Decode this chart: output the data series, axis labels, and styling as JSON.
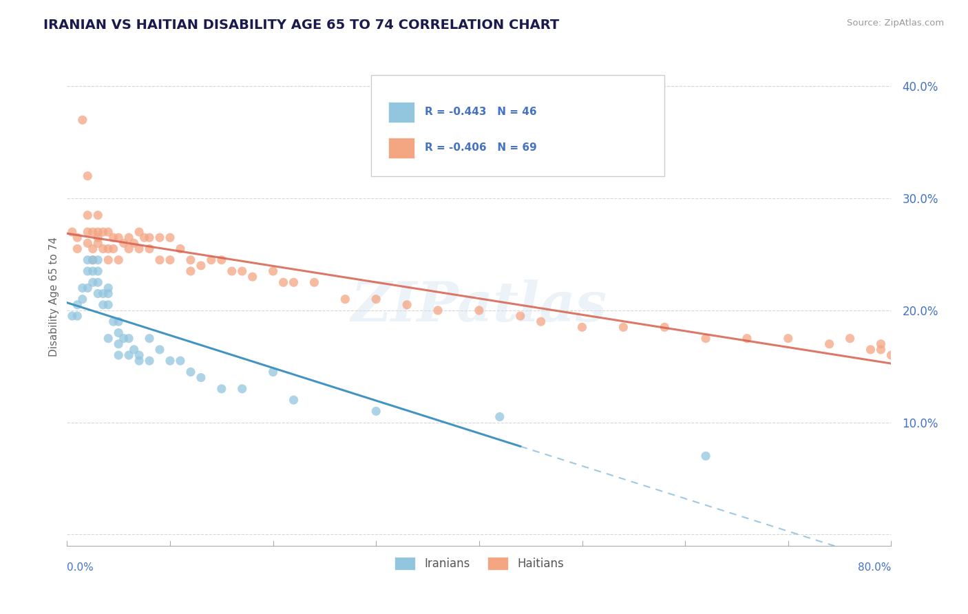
{
  "title": "IRANIAN VS HAITIAN DISABILITY AGE 65 TO 74 CORRELATION CHART",
  "source": "Source: ZipAtlas.com",
  "ylabel": "Disability Age 65 to 74",
  "xlim": [
    0.0,
    0.8
  ],
  "ylim": [
    -0.01,
    0.435
  ],
  "yticks": [
    0.0,
    0.1,
    0.2,
    0.3,
    0.4
  ],
  "ytick_labels": [
    "",
    "10.0%",
    "20.0%",
    "30.0%",
    "40.0%"
  ],
  "legend_line1": "R = -0.443   N = 46",
  "legend_line2": "R = -0.406   N = 69",
  "iranian_color": "#92c5de",
  "haitian_color": "#f4a582",
  "iranian_line_color": "#4393c3",
  "haitian_line_color": "#d6604d",
  "watermark": "ZIPAtlas",
  "background_color": "#ffffff",
  "grid_color": "#cccccc",
  "iranian_scatter_x": [
    0.005,
    0.01,
    0.01,
    0.015,
    0.015,
    0.02,
    0.02,
    0.02,
    0.025,
    0.025,
    0.025,
    0.03,
    0.03,
    0.03,
    0.03,
    0.035,
    0.035,
    0.04,
    0.04,
    0.04,
    0.04,
    0.045,
    0.05,
    0.05,
    0.05,
    0.05,
    0.055,
    0.06,
    0.06,
    0.065,
    0.07,
    0.07,
    0.08,
    0.08,
    0.09,
    0.1,
    0.11,
    0.12,
    0.13,
    0.15,
    0.17,
    0.2,
    0.22,
    0.3,
    0.42,
    0.62
  ],
  "iranian_scatter_y": [
    0.195,
    0.205,
    0.195,
    0.22,
    0.21,
    0.245,
    0.235,
    0.22,
    0.245,
    0.235,
    0.225,
    0.245,
    0.235,
    0.225,
    0.215,
    0.215,
    0.205,
    0.22,
    0.215,
    0.205,
    0.175,
    0.19,
    0.19,
    0.18,
    0.17,
    0.16,
    0.175,
    0.175,
    0.16,
    0.165,
    0.16,
    0.155,
    0.175,
    0.155,
    0.165,
    0.155,
    0.155,
    0.145,
    0.14,
    0.13,
    0.13,
    0.145,
    0.12,
    0.11,
    0.105,
    0.07
  ],
  "haitian_scatter_x": [
    0.005,
    0.01,
    0.01,
    0.015,
    0.02,
    0.02,
    0.02,
    0.02,
    0.025,
    0.025,
    0.025,
    0.03,
    0.03,
    0.03,
    0.03,
    0.035,
    0.035,
    0.04,
    0.04,
    0.04,
    0.045,
    0.045,
    0.05,
    0.05,
    0.055,
    0.06,
    0.06,
    0.065,
    0.07,
    0.07,
    0.075,
    0.08,
    0.08,
    0.09,
    0.09,
    0.1,
    0.1,
    0.11,
    0.12,
    0.12,
    0.13,
    0.14,
    0.15,
    0.16,
    0.17,
    0.18,
    0.2,
    0.21,
    0.22,
    0.24,
    0.27,
    0.3,
    0.33,
    0.36,
    0.4,
    0.44,
    0.46,
    0.5,
    0.54,
    0.58,
    0.62,
    0.66,
    0.7,
    0.74,
    0.76,
    0.78,
    0.79,
    0.79,
    0.8
  ],
  "haitian_scatter_y": [
    0.27,
    0.265,
    0.255,
    0.37,
    0.32,
    0.285,
    0.27,
    0.26,
    0.27,
    0.255,
    0.245,
    0.285,
    0.27,
    0.265,
    0.26,
    0.27,
    0.255,
    0.27,
    0.255,
    0.245,
    0.265,
    0.255,
    0.265,
    0.245,
    0.26,
    0.265,
    0.255,
    0.26,
    0.27,
    0.255,
    0.265,
    0.265,
    0.255,
    0.265,
    0.245,
    0.265,
    0.245,
    0.255,
    0.245,
    0.235,
    0.24,
    0.245,
    0.245,
    0.235,
    0.235,
    0.23,
    0.235,
    0.225,
    0.225,
    0.225,
    0.21,
    0.21,
    0.205,
    0.2,
    0.2,
    0.195,
    0.19,
    0.185,
    0.185,
    0.185,
    0.175,
    0.175,
    0.175,
    0.17,
    0.175,
    0.165,
    0.17,
    0.165,
    0.16
  ]
}
